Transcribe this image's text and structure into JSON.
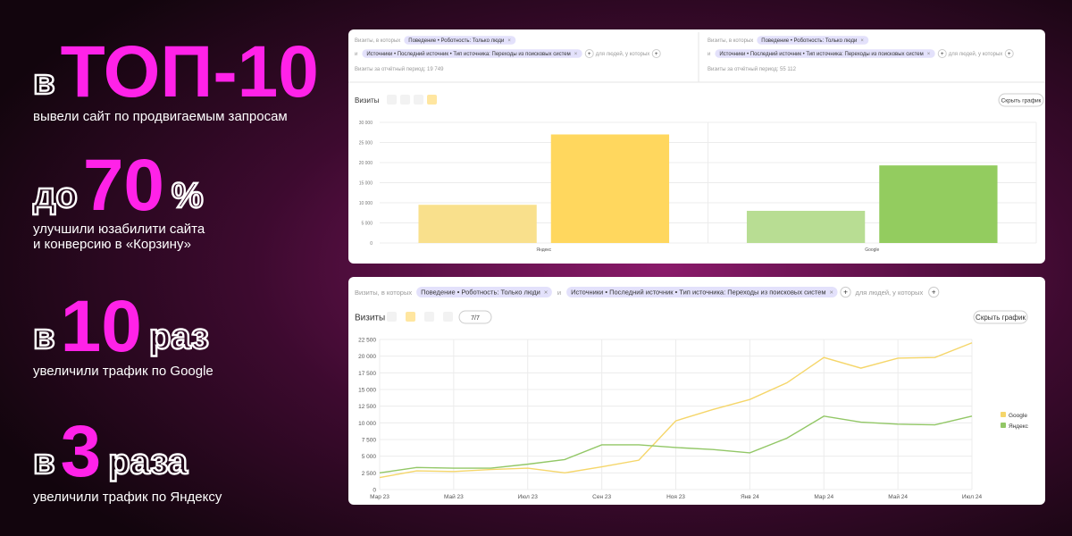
{
  "stats": [
    {
      "prefix": "в",
      "big": "ТОП-10",
      "caption": [
        "вывели сайт по продвигаемым запросам"
      ]
    },
    {
      "prefix": "до",
      "big": "70",
      "suffix": "%",
      "caption": [
        "улучшили юзабилити сайта",
        "и конверсию в «Корзину»"
      ]
    },
    {
      "prefix": "в",
      "big": "10",
      "suffix": "раз",
      "caption": [
        "увеличили трафик по Google"
      ]
    },
    {
      "prefix": "в",
      "big": "3",
      "suffix": "раза",
      "caption": [
        "увеличили трафик по Яндексу"
      ]
    }
  ],
  "top_panel": {
    "filters": [
      {
        "label": "Визиты, в которых",
        "chips": [
          "Поведение • Роботность: Только люди",
          "Источники • Последний источник • Тип источника: Переходы из поисковых систем"
        ],
        "joiner": "и",
        "tail": "для людей, у которых",
        "total": "Визиты за отчётный период: 19 749"
      },
      {
        "label": "Визиты, в которых",
        "chips": [
          "Поведение • Роботность: Только люди",
          "Источники • Последний источник • Тип источника: Переходы из поисковых систем"
        ],
        "joiner": "и",
        "tail": "для людей, у которых",
        "total": "Визиты за отчётный период: 55 112"
      }
    ],
    "chart": {
      "type": "bar",
      "title": "Визиты",
      "button": "Скрыть график",
      "categories": [
        "Яндекс",
        "Google"
      ],
      "values": [
        [
          9500,
          27000
        ],
        [
          8000,
          19300
        ]
      ],
      "colors": [
        [
          "#f9e08c",
          "#ffd75e"
        ],
        [
          "#b8dd93",
          "#93cc5f"
        ]
      ],
      "ylim": [
        0,
        30000
      ],
      "yticks": [
        0,
        {
          "value": 5000,
          "label": "5 000"
        },
        {
          "value": 10000,
          "label": "10 000"
        },
        {
          "value": 15000,
          "label": "15 000"
        },
        {
          "value": 20000,
          "label": "20 000"
        },
        {
          "value": 25000,
          "label": "25 000"
        },
        {
          "value": 30000,
          "label": "30 000"
        }
      ],
      "grid": true
    }
  },
  "bottom_panel": {
    "filter": {
      "label": "Визиты, в которых",
      "chips": [
        "Поведение • Роботность: Только люди",
        "Источники • Последний источник • Тип источника: Переходы из поисковых систем"
      ],
      "joiner": "и",
      "tail": "для людей, у которых"
    },
    "chart": {
      "type": "line",
      "title": "Визиты",
      "counter": "7/7",
      "button": "Скрыть график",
      "categories": [
        "Мар 23",
        null,
        "Май 23",
        null,
        "Июл 23",
        null,
        "Сен 23",
        null,
        "Ноя 23",
        null,
        "Янв 24",
        null,
        "Мар 24",
        null,
        "Май 24",
        null,
        "Июл 24"
      ],
      "series": [
        {
          "name": "Google",
          "color": "#f5d66a",
          "values": [
            1800,
            2800,
            2700,
            3000,
            3200,
            2500,
            3400,
            4400,
            10300,
            12000,
            13500,
            16000,
            19800,
            18200,
            19700,
            19800,
            22000
          ]
        },
        {
          "name": "Яндекс",
          "color": "#92c766",
          "values": [
            2500,
            3300,
            3200,
            3200,
            3800,
            4500,
            6700,
            6700,
            6300,
            6000,
            5500,
            7700,
            11000,
            10100,
            9800,
            9700,
            11000
          ]
        }
      ],
      "ylim": [
        0,
        22500
      ],
      "yticks": [
        0,
        {
          "value": 2500,
          "label": "2 500"
        },
        {
          "value": 5000,
          "label": "5 000"
        },
        {
          "value": 7500,
          "label": "7 500"
        },
        {
          "value": 10000,
          "label": "10 000"
        },
        {
          "value": 12500,
          "label": "12 500"
        },
        {
          "value": 15000,
          "label": "15 000"
        },
        {
          "value": 17500,
          "label": "17 500"
        },
        {
          "value": 20000,
          "label": "20 000"
        },
        {
          "value": 22500,
          "label": "22 500"
        }
      ],
      "grid": true
    }
  }
}
